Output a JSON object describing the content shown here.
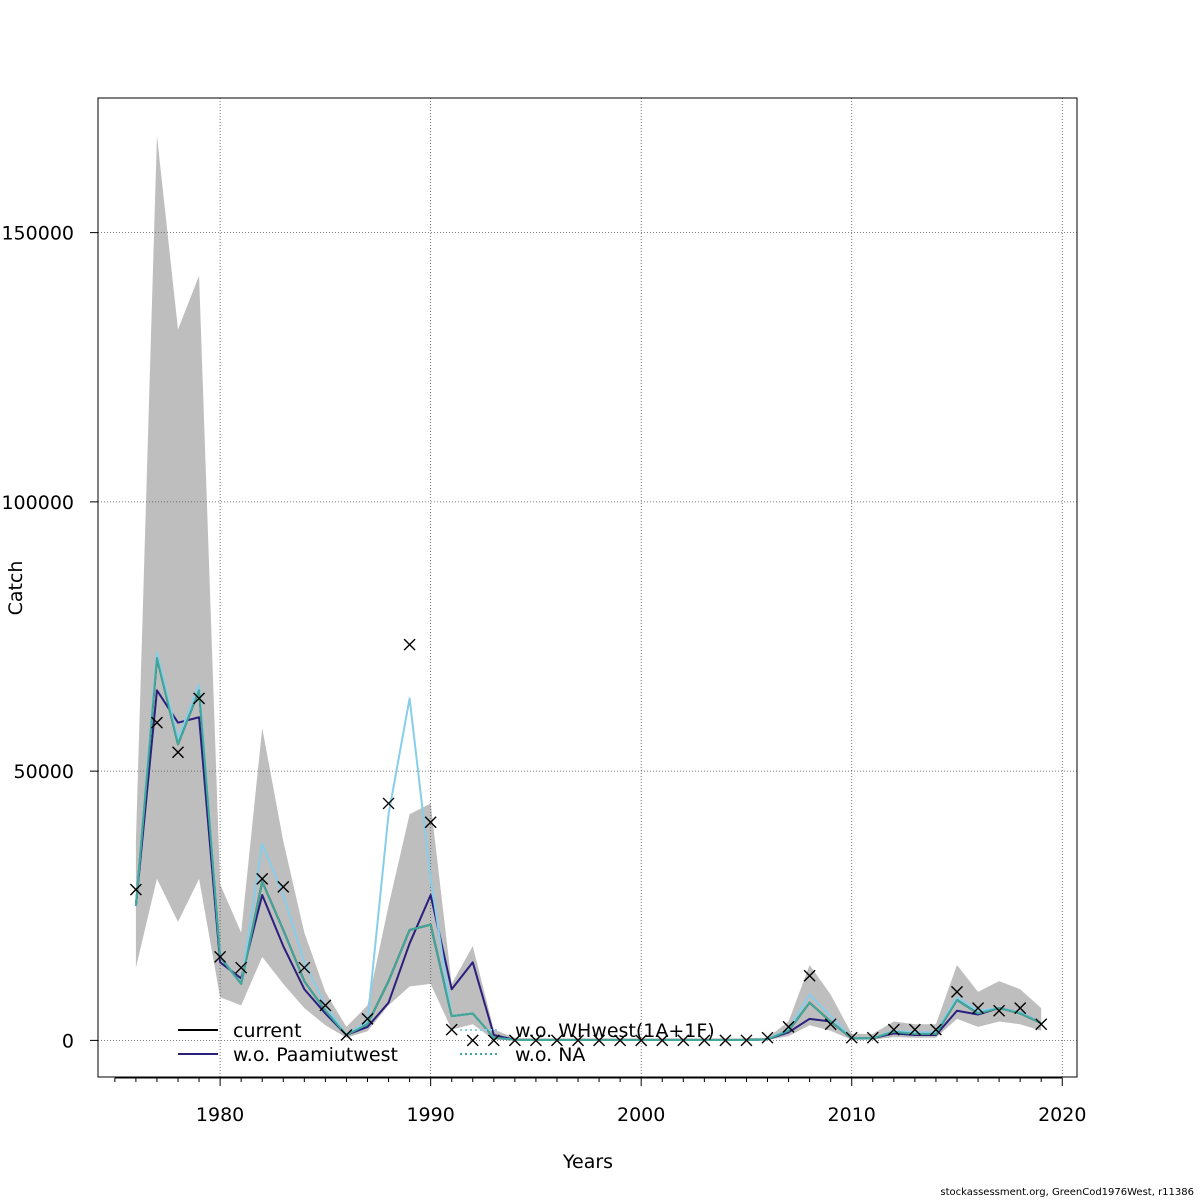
{
  "footer": "stockassessment.org, GreenCod1976West, r11386",
  "chart_data": {
    "type": "line",
    "xlabel": "Years",
    "ylabel": "Catch",
    "xlim": [
      1974.2,
      2020.7
    ],
    "ylim": [
      -6800,
      175000
    ],
    "xticks": [
      1980,
      1990,
      2000,
      2010,
      2020
    ],
    "yticks": [
      0,
      50000,
      100000,
      150000
    ],
    "grid": true,
    "legend_position": "bottom-left",
    "x": [
      1976,
      1977,
      1978,
      1979,
      1980,
      1981,
      1982,
      1983,
      1984,
      1985,
      1986,
      1987,
      1988,
      1989,
      1990,
      1991,
      1992,
      1993,
      1994,
      1995,
      1996,
      1997,
      1998,
      1999,
      2000,
      2001,
      2002,
      2003,
      2004,
      2005,
      2006,
      2007,
      2008,
      2009,
      2010,
      2011,
      2012,
      2013,
      2014,
      2015,
      2016,
      2017,
      2018,
      2019
    ],
    "band": {
      "color": "#bebebe",
      "upper": [
        37000,
        168000,
        132000,
        142000,
        29000,
        20000,
        58000,
        37000,
        20000,
        9000,
        2500,
        6500,
        25000,
        42000,
        44000,
        10500,
        17500,
        2000,
        500,
        400,
        400,
        400,
        400,
        400,
        400,
        400,
        400,
        400,
        400,
        400,
        500,
        3500,
        14000,
        8500,
        1200,
        1200,
        3500,
        3000,
        3000,
        14000,
        9000,
        11000,
        9500,
        6000
      ],
      "lower": [
        13500,
        30000,
        22000,
        30000,
        8000,
        6500,
        15500,
        10500,
        6000,
        2800,
        500,
        1700,
        6500,
        10000,
        10500,
        2000,
        3000,
        100,
        20,
        20,
        20,
        20,
        20,
        20,
        20,
        20,
        20,
        20,
        20,
        20,
        50,
        800,
        2800,
        1800,
        100,
        150,
        600,
        500,
        500,
        4000,
        2500,
        3500,
        3000,
        1800
      ]
    },
    "observed": {
      "marker": "x",
      "color": "#000000",
      "values": [
        28000,
        59000,
        53500,
        63500,
        15500,
        13500,
        30000,
        28500,
        13500,
        6500,
        1000,
        4000,
        44000,
        73500,
        40500,
        2000,
        0,
        0,
        0,
        0,
        0,
        0,
        0,
        0,
        0,
        0,
        0,
        0,
        0,
        0,
        500,
        2500,
        12000,
        3000,
        500,
        500,
        2000,
        2000,
        2000,
        9000,
        6000,
        5500,
        6000,
        3000
      ]
    },
    "series": [
      {
        "name": "current",
        "color": "#000000",
        "dash": "",
        "values": [
          25000,
          71000,
          55000,
          65000,
          15500,
          10500,
          29500,
          20500,
          11000,
          5500,
          1000,
          3000,
          11000,
          20500,
          21500,
          4500,
          5000,
          500,
          100,
          80,
          60,
          60,
          60,
          60,
          60,
          60,
          60,
          60,
          60,
          60,
          200,
          1800,
          7000,
          3500,
          400,
          400,
          1600,
          1200,
          1200,
          7500,
          5000,
          6000,
          5000,
          3200
        ]
      },
      {
        "name": "w.o. Paamiutwest",
        "color": "#2b1f7d",
        "dash": "",
        "values": [
          25000,
          65000,
          59000,
          60000,
          14500,
          11500,
          27000,
          17500,
          9500,
          5000,
          1000,
          2500,
          7000,
          18000,
          27000,
          9500,
          14500,
          1000,
          100,
          80,
          60,
          60,
          60,
          60,
          60,
          60,
          60,
          60,
          60,
          60,
          200,
          1500,
          4000,
          3500,
          400,
          400,
          1300,
          1000,
          1000,
          5500,
          4800,
          6000,
          5200,
          3200
        ]
      },
      {
        "name": "w.o. WHwest(1A+1F)",
        "color": "#87ceeb",
        "dash": "2,3",
        "values": [
          25000,
          72000,
          56000,
          66000,
          15500,
          10500,
          36500,
          27000,
          14500,
          6500,
          1000,
          3500,
          42000,
          63500,
          30000,
          4500,
          5000,
          500,
          100,
          80,
          60,
          60,
          60,
          60,
          60,
          60,
          60,
          60,
          60,
          60,
          200,
          2000,
          8500,
          4500,
          400,
          400,
          1800,
          1500,
          1500,
          8000,
          5500,
          6000,
          5200,
          3200
        ]
      },
      {
        "name": "w.o. NA",
        "color": "#40a89b",
        "dash": "2,3",
        "values": [
          25000,
          71000,
          55000,
          65000,
          15500,
          10500,
          29500,
          20500,
          11000,
          5500,
          1000,
          3000,
          11000,
          20500,
          21500,
          4500,
          5000,
          500,
          100,
          80,
          60,
          60,
          60,
          60,
          60,
          60,
          60,
          60,
          60,
          60,
          200,
          1800,
          7000,
          3500,
          400,
          400,
          1600,
          1200,
          1200,
          7500,
          5000,
          6000,
          5000,
          3200
        ]
      }
    ]
  }
}
